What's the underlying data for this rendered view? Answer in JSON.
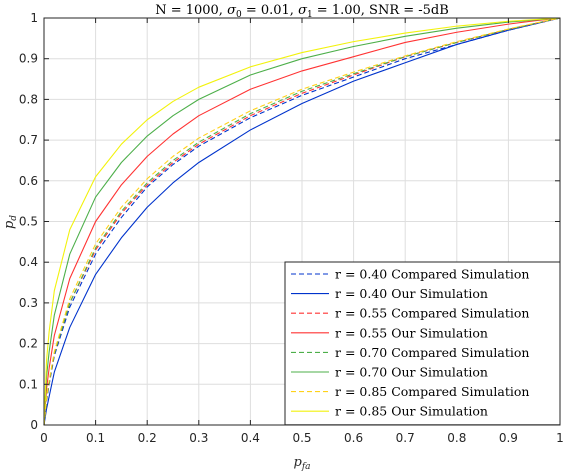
{
  "chart_data": {
    "type": "line",
    "title": "N = 1000, σ0 = 0.01, σ1 = 1.00, SNR = -5dB",
    "xlabel": "pfa",
    "ylabel": "pd",
    "xlim": [
      0,
      1
    ],
    "ylim": [
      0,
      1
    ],
    "xticks": [
      "0",
      "0.1",
      "0.2",
      "0.3",
      "0.4",
      "0.5",
      "0.6",
      "0.7",
      "0.8",
      "0.9",
      "1"
    ],
    "yticks": [
      "0",
      "0.1",
      "0.2",
      "0.3",
      "0.4",
      "0.5",
      "0.6",
      "0.7",
      "0.8",
      "0.9",
      "1"
    ],
    "grid": true,
    "legend_position": "bottom-right",
    "series": [
      {
        "name": "r = 0.40 Compared Simulation",
        "color": "#0033cc",
        "dash": true,
        "x": [
          0,
          0.005,
          0.01,
          0.02,
          0.05,
          0.1,
          0.15,
          0.2,
          0.25,
          0.3,
          0.4,
          0.5,
          0.6,
          0.7,
          0.8,
          0.9,
          0.95,
          1
        ],
        "y": [
          0,
          0.06,
          0.1,
          0.17,
          0.29,
          0.42,
          0.51,
          0.585,
          0.64,
          0.685,
          0.755,
          0.81,
          0.855,
          0.9,
          0.935,
          0.97,
          0.985,
          1
        ]
      },
      {
        "name": "r = 0.40 Our Simulation",
        "color": "#0033cc",
        "dash": false,
        "x": [
          0,
          0.005,
          0.01,
          0.02,
          0.05,
          0.1,
          0.15,
          0.2,
          0.25,
          0.3,
          0.4,
          0.5,
          0.6,
          0.7,
          0.8,
          0.9,
          0.95,
          1
        ],
        "y": [
          0,
          0.04,
          0.07,
          0.13,
          0.24,
          0.37,
          0.46,
          0.535,
          0.595,
          0.645,
          0.725,
          0.79,
          0.845,
          0.89,
          0.935,
          0.97,
          0.985,
          1
        ]
      },
      {
        "name": "r = 0.55 Compared Simulation",
        "color": "#ff3333",
        "dash": true,
        "x": [
          0,
          0.005,
          0.01,
          0.02,
          0.05,
          0.1,
          0.15,
          0.2,
          0.25,
          0.3,
          0.4,
          0.5,
          0.6,
          0.7,
          0.8,
          0.9,
          0.95,
          1
        ],
        "y": [
          0,
          0.065,
          0.105,
          0.175,
          0.3,
          0.43,
          0.52,
          0.59,
          0.645,
          0.69,
          0.76,
          0.815,
          0.86,
          0.905,
          0.94,
          0.972,
          0.986,
          1
        ]
      },
      {
        "name": "r = 0.55 Our Simulation",
        "color": "#ff3333",
        "dash": false,
        "x": [
          0,
          0.005,
          0.01,
          0.02,
          0.05,
          0.1,
          0.15,
          0.2,
          0.25,
          0.3,
          0.4,
          0.5,
          0.6,
          0.7,
          0.8,
          0.9,
          0.95,
          1
        ],
        "y": [
          0,
          0.09,
          0.14,
          0.22,
          0.36,
          0.5,
          0.59,
          0.66,
          0.715,
          0.76,
          0.825,
          0.87,
          0.905,
          0.94,
          0.965,
          0.985,
          0.993,
          1
        ]
      },
      {
        "name": "r = 0.70 Compared Simulation",
        "color": "#4daf4a",
        "dash": true,
        "x": [
          0,
          0.005,
          0.01,
          0.02,
          0.05,
          0.1,
          0.15,
          0.2,
          0.25,
          0.3,
          0.4,
          0.5,
          0.6,
          0.7,
          0.8,
          0.9,
          0.95,
          1
        ],
        "y": [
          0,
          0.065,
          0.105,
          0.175,
          0.3,
          0.435,
          0.525,
          0.595,
          0.65,
          0.695,
          0.765,
          0.82,
          0.863,
          0.905,
          0.94,
          0.972,
          0.986,
          1
        ]
      },
      {
        "name": "r = 0.70 Our Simulation",
        "color": "#4daf4a",
        "dash": false,
        "x": [
          0,
          0.005,
          0.01,
          0.02,
          0.05,
          0.1,
          0.15,
          0.2,
          0.25,
          0.3,
          0.4,
          0.5,
          0.6,
          0.7,
          0.8,
          0.9,
          0.95,
          1
        ],
        "y": [
          0,
          0.12,
          0.18,
          0.27,
          0.42,
          0.56,
          0.645,
          0.71,
          0.76,
          0.8,
          0.86,
          0.9,
          0.93,
          0.955,
          0.975,
          0.99,
          0.995,
          1
        ]
      },
      {
        "name": "r = 0.85 Compared Simulation",
        "color": "#ffd21a",
        "dash": true,
        "x": [
          0,
          0.005,
          0.01,
          0.02,
          0.05,
          0.1,
          0.15,
          0.2,
          0.25,
          0.3,
          0.4,
          0.5,
          0.6,
          0.7,
          0.8,
          0.9,
          0.95,
          1
        ],
        "y": [
          0,
          0.07,
          0.11,
          0.18,
          0.31,
          0.445,
          0.535,
          0.605,
          0.66,
          0.705,
          0.772,
          0.825,
          0.867,
          0.907,
          0.942,
          0.973,
          0.987,
          1
        ]
      },
      {
        "name": "r = 0.85 Our Simulation",
        "color": "#f2f20d",
        "dash": false,
        "x": [
          0,
          0.005,
          0.01,
          0.02,
          0.05,
          0.1,
          0.15,
          0.2,
          0.25,
          0.3,
          0.4,
          0.5,
          0.6,
          0.7,
          0.8,
          0.9,
          0.95,
          1
        ],
        "y": [
          0,
          0.16,
          0.23,
          0.33,
          0.48,
          0.61,
          0.69,
          0.75,
          0.795,
          0.83,
          0.88,
          0.915,
          0.942,
          0.963,
          0.98,
          0.992,
          0.996,
          1
        ]
      }
    ]
  }
}
